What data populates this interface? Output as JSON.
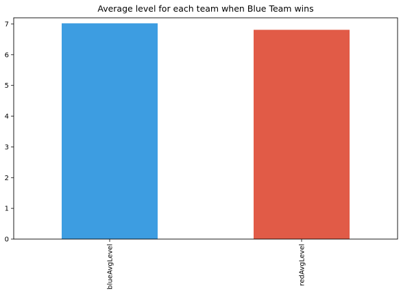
{
  "chart_data": {
    "type": "bar",
    "title": "Average level for each team when Blue Team wins",
    "xlabel": "",
    "ylabel": "",
    "categories": [
      "blueAvgLevel",
      "redAvgLevel"
    ],
    "values": [
      7.02,
      6.81
    ],
    "bar_colors": [
      "#3d9de1",
      "#e15b47"
    ],
    "ylim": [
      0,
      7.2
    ],
    "yticks": [
      0,
      1,
      2,
      3,
      4,
      5,
      6,
      7
    ],
    "ytick_labels": [
      "0",
      "1",
      "2",
      "3",
      "4",
      "5",
      "6",
      "7"
    ],
    "grid": false,
    "legend": "none"
  }
}
